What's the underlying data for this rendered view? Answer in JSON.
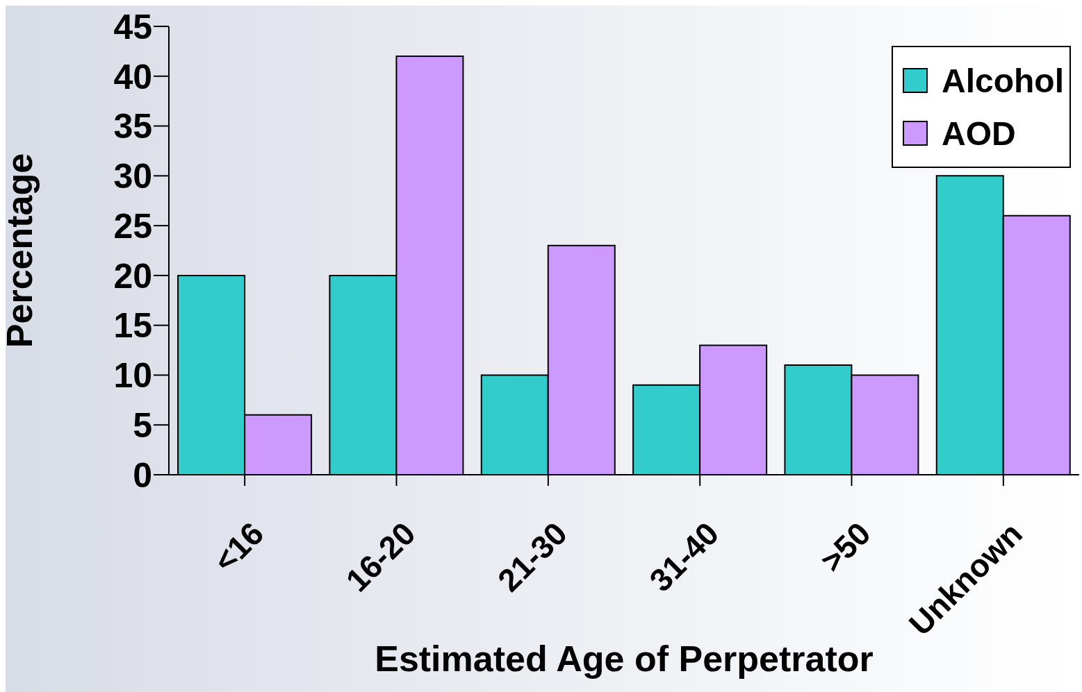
{
  "chart_data": {
    "type": "bar",
    "xlabel": "Estimated Age of Perpetrator",
    "ylabel": "Percentage",
    "categories": [
      "<16",
      "16-20",
      "21-30",
      "31-40",
      ">50",
      "Unknown"
    ],
    "series": [
      {
        "name": "Alcohol",
        "color": "#33cccc",
        "values": [
          20,
          20,
          10,
          9,
          11,
          30
        ]
      },
      {
        "name": "AOD",
        "color": "#cc99ff",
        "values": [
          6,
          42,
          23,
          13,
          10,
          26
        ]
      }
    ],
    "ylim": [
      0,
      45
    ],
    "yticks": [
      0,
      5,
      10,
      15,
      20,
      25,
      30,
      35,
      40,
      45
    ],
    "grid": false,
    "legend": "top right"
  }
}
